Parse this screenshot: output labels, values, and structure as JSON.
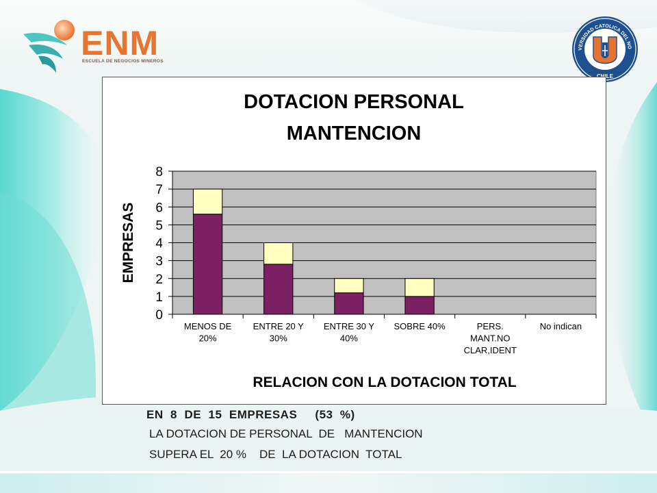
{
  "branding": {
    "left_logo_text": "ENM",
    "left_logo_subtitle": "ESCUELA DE NEGOCIOS MINEROS",
    "right_logo_top_text": "UNIVERSIDAD CATOLICA DEL NORTE",
    "right_logo_bottom_text": "CHILE",
    "right_logo_letter": "U"
  },
  "colors": {
    "bar_bottom": "#7b2062",
    "bar_top": "#ffffc0",
    "plot_bg": "#c0c0c0",
    "accent_teal": "#57d6cf"
  },
  "chart_data": {
    "type": "bar",
    "stacked": true,
    "title_lines": [
      "DOTACION PERSONAL",
      "MANTENCION"
    ],
    "xlabel": "RELACION CON LA DOTACION TOTAL",
    "ylabel": "EMPRESAS",
    "ylim": [
      0,
      8
    ],
    "yticks": [
      "0",
      "1",
      "2",
      "3",
      "4",
      "5",
      "6",
      "7",
      "8"
    ],
    "categories": [
      [
        "MENOS DE",
        "20%"
      ],
      [
        "ENTRE 20 Y",
        "30%"
      ],
      [
        "ENTRE 30 Y",
        "40%"
      ],
      [
        "SOBRE 40%"
      ],
      [
        "PERS.",
        "MANT.NO",
        "CLAR,IDENT"
      ],
      [
        "No indican"
      ]
    ],
    "series": [
      {
        "values": [
          5.6,
          2.8,
          1.2,
          1.0,
          0,
          0
        ]
      },
      {
        "values": [
          1.4,
          1.2,
          0.8,
          1.0,
          0,
          0
        ]
      }
    ],
    "grid": true,
    "legend": "none"
  },
  "caption": {
    "line1": "EN  8  DE  15  EMPRESAS     (53  %)",
    "line2": "LA DOTACION DE PERSONAL  DE   MANTENCION",
    "line3": "SUPERA EL  20 %    DE  LA DOTACION  TOTAL"
  }
}
